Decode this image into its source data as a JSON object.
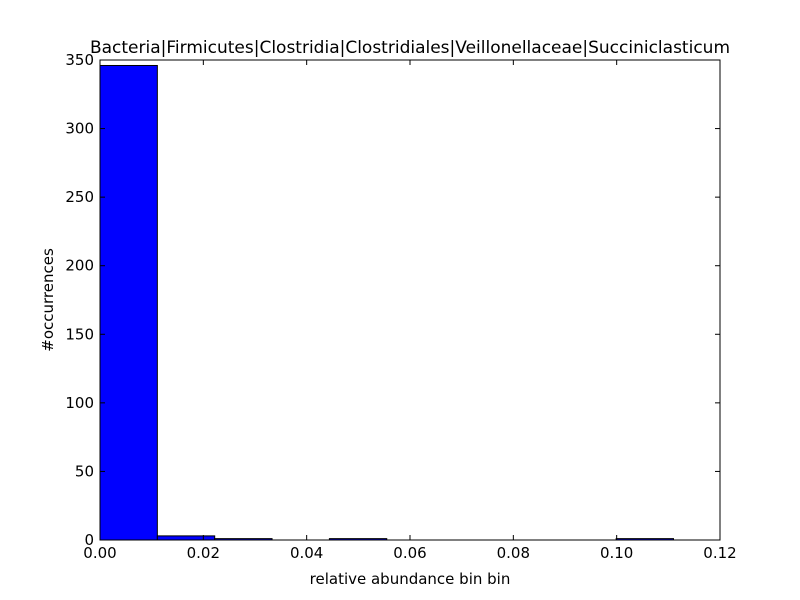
{
  "chart_data": {
    "type": "bar",
    "title": "Bacteria|Firmicutes|Clostridia|Clostridiales|Veillonellaceae|Succiniclasticum",
    "xlabel": "relative abundance bin bin",
    "ylabel": "#occurrences",
    "xlim": [
      0.0,
      0.12
    ],
    "ylim": [
      0,
      350
    ],
    "xticks": [
      "0.00",
      "0.02",
      "0.04",
      "0.06",
      "0.08",
      "0.10",
      "0.12"
    ],
    "yticks": [
      "0",
      "50",
      "100",
      "150",
      "200",
      "250",
      "300",
      "350"
    ],
    "bar_color": "#0000ff",
    "bins": [
      {
        "x0": 0.0,
        "x1": 0.0111,
        "value": 346
      },
      {
        "x0": 0.0111,
        "x1": 0.0222,
        "value": 3
      },
      {
        "x0": 0.0222,
        "x1": 0.0333,
        "value": 1
      },
      {
        "x0": 0.0333,
        "x1": 0.0444,
        "value": 0
      },
      {
        "x0": 0.0444,
        "x1": 0.0555,
        "value": 1
      },
      {
        "x0": 0.0555,
        "x1": 0.0666,
        "value": 0
      },
      {
        "x0": 0.0666,
        "x1": 0.0777,
        "value": 0
      },
      {
        "x0": 0.0777,
        "x1": 0.0888,
        "value": 0
      },
      {
        "x0": 0.0888,
        "x1": 0.0999,
        "value": 0
      },
      {
        "x0": 0.0999,
        "x1": 0.111,
        "value": 1
      }
    ],
    "grid": false,
    "legend": "none"
  }
}
